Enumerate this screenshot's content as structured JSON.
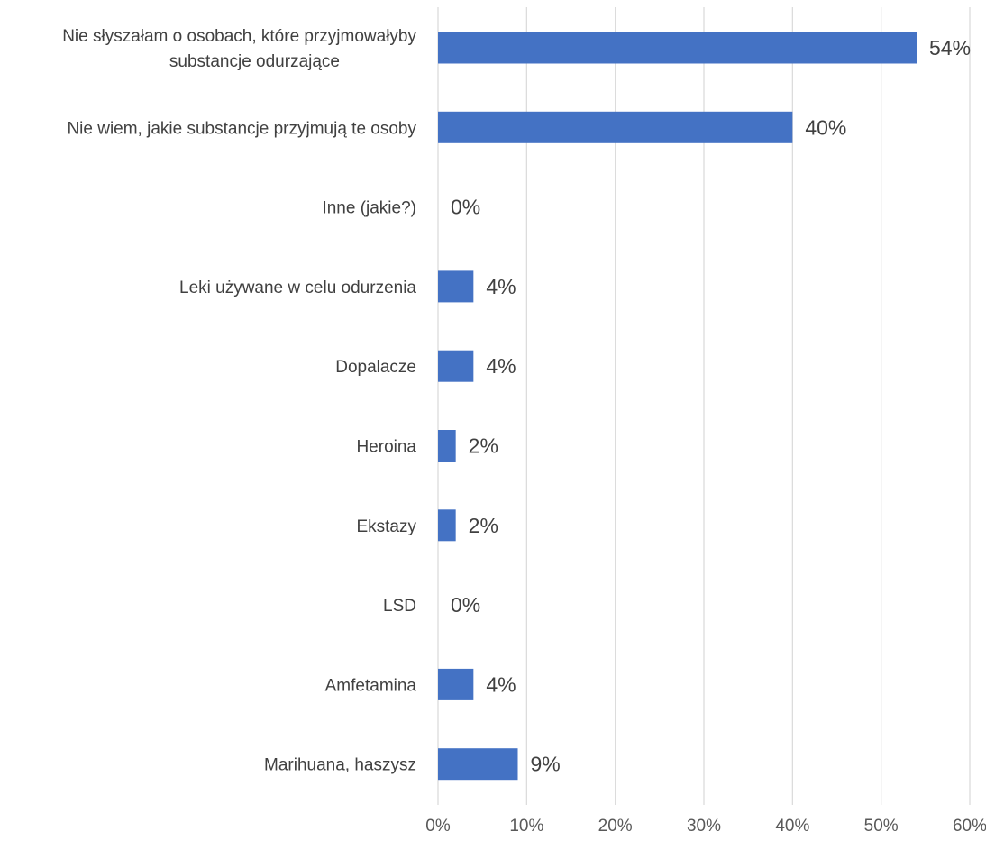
{
  "chart_data": {
    "type": "bar",
    "orientation": "horizontal",
    "title": "",
    "xlabel": "",
    "ylabel": "",
    "categories": [
      [
        "Nie słyszałam o osobach, które przyjmowałyby",
        "substancje odurzające"
      ],
      [
        "Nie wiem, jakie substancje przyjmują te osoby"
      ],
      [
        "Inne (jakie?)"
      ],
      [
        "Leki używane w celu odurzenia"
      ],
      [
        "Dopalacze"
      ],
      [
        "Heroina"
      ],
      [
        "Ekstazy"
      ],
      [
        "LSD"
      ],
      [
        "Amfetamina"
      ],
      [
        "Marihuana, haszysz"
      ]
    ],
    "values": [
      54,
      40,
      0,
      4,
      4,
      2,
      2,
      0,
      4,
      9
    ],
    "data_labels": [
      "54%",
      "40%",
      "0%",
      "4%",
      "4%",
      "2%",
      "2%",
      "0%",
      "4%",
      "9%"
    ],
    "xlim": [
      0,
      60
    ],
    "x_ticks": [
      0,
      10,
      20,
      30,
      40,
      50,
      60
    ],
    "x_tick_labels": [
      "0%",
      "10%",
      "20%",
      "30%",
      "40%",
      "50%",
      "60%"
    ],
    "grid": true,
    "legend": "none",
    "colors": {
      "bar": "#4472c4",
      "grid": "#d9d9d9",
      "text": "#404040"
    }
  }
}
